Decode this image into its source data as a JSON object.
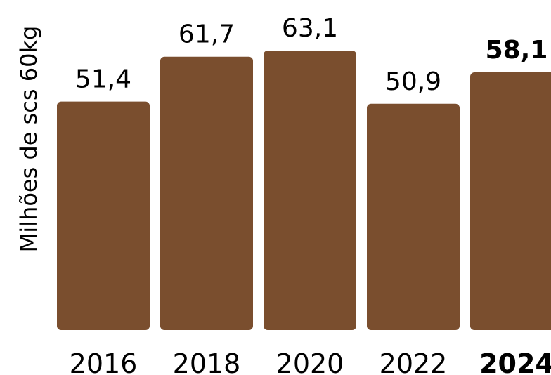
{
  "chart_data": {
    "type": "bar",
    "ylabel": "Milhões de scs 60kg",
    "categories": [
      "2016",
      "2018",
      "2020",
      "2022",
      "2024"
    ],
    "values": [
      51.4,
      61.7,
      63.1,
      50.9,
      58.1
    ],
    "value_labels": [
      "51,4",
      "61,7",
      "63,1",
      "50,9",
      "58,1"
    ],
    "highlighted_category": "2024",
    "bar_color": "#7a4e2e",
    "ylim": [
      0,
      63.1
    ]
  }
}
